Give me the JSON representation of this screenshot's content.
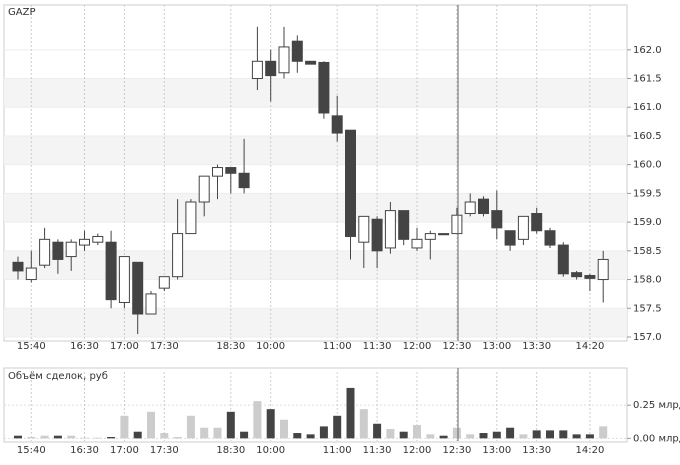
{
  "chart_data": [
    {
      "type": "candlestick",
      "title": "GAZP",
      "categories": [
        null,
        "15:40",
        null,
        null,
        null,
        "16:30",
        null,
        null,
        "17:00",
        null,
        null,
        "17:30",
        null,
        null,
        null,
        null,
        "18:30",
        null,
        null,
        "10:00",
        null,
        null,
        null,
        null,
        "11:00",
        null,
        null,
        "11:30",
        null,
        null,
        "12:00",
        null,
        null,
        "12:30",
        null,
        null,
        "13:00",
        null,
        null,
        "13:30",
        null,
        null,
        null,
        "14:20",
        null
      ],
      "open": [
        158.3,
        158.0,
        158.25,
        158.65,
        158.4,
        158.6,
        158.65,
        158.65,
        157.6,
        158.3,
        157.4,
        157.85,
        158.05,
        158.8,
        159.35,
        159.8,
        159.95,
        159.85,
        161.5,
        161.8,
        161.6,
        162.15,
        161.8,
        161.78,
        160.85,
        160.6,
        158.65,
        159.05,
        158.55,
        159.2,
        158.55,
        158.7,
        158.8,
        158.8,
        159.15,
        159.4,
        159.2,
        158.85,
        158.7,
        159.15,
        158.85,
        158.6,
        158.12,
        158.07,
        158.0
      ],
      "high": [
        158.4,
        158.5,
        158.9,
        158.7,
        158.7,
        158.85,
        158.8,
        158.85,
        158.4,
        158.3,
        157.8,
        158.05,
        159.4,
        159.4,
        159.8,
        160.0,
        159.95,
        160.45,
        162.4,
        162.0,
        162.4,
        162.25,
        161.8,
        161.8,
        161.2,
        160.6,
        159.1,
        159.1,
        159.35,
        159.2,
        158.9,
        158.85,
        158.8,
        159.25,
        159.5,
        159.45,
        159.55,
        158.85,
        159.1,
        159.25,
        158.9,
        158.65,
        158.15,
        158.1,
        158.5
      ],
      "low": [
        158.0,
        157.95,
        158.2,
        158.1,
        158.15,
        158.5,
        158.6,
        157.5,
        157.5,
        157.05,
        157.4,
        157.8,
        158.0,
        158.8,
        159.1,
        159.4,
        159.5,
        159.5,
        161.3,
        161.1,
        161.5,
        161.6,
        161.75,
        160.8,
        160.4,
        158.35,
        158.2,
        158.2,
        158.45,
        158.6,
        158.5,
        158.35,
        158.8,
        158.8,
        159.1,
        159.1,
        158.7,
        158.5,
        158.6,
        158.8,
        158.55,
        158.05,
        158.0,
        157.8,
        157.6
      ],
      "close": [
        158.15,
        158.2,
        158.7,
        158.35,
        158.65,
        158.7,
        158.75,
        157.65,
        158.4,
        157.4,
        157.75,
        158.05,
        158.8,
        159.35,
        159.8,
        159.95,
        159.85,
        159.6,
        161.8,
        161.55,
        162.05,
        161.8,
        161.75,
        160.9,
        160.55,
        158.75,
        159.1,
        158.5,
        159.2,
        158.7,
        158.7,
        158.8,
        158.78,
        159.12,
        159.35,
        159.15,
        158.9,
        158.6,
        159.1,
        158.85,
        158.6,
        158.1,
        158.05,
        158.02,
        158.35
      ],
      "ylim": [
        156.93,
        162.78
      ],
      "yticks": [
        {
          "value": 157.0,
          "label": "157.0"
        },
        157.5,
        {
          "value": 158.0,
          "label": "158.0"
        },
        158.5,
        {
          "value": 159.0,
          "label": "159.0"
        },
        159.5,
        {
          "value": 160.0,
          "label": "160.0"
        },
        160.5,
        {
          "value": 161.0,
          "label": "161.0"
        },
        161.5,
        {
          "value": 162.0,
          "label": "162.0"
        }
      ],
      "up_color": "#ffffff",
      "down_color": "#444444",
      "grid": true
    },
    {
      "type": "bar",
      "title": "Объём сделок, руб",
      "categories": [
        null,
        "15:40",
        null,
        null,
        null,
        "16:30",
        null,
        null,
        "17:00",
        null,
        null,
        "17:30",
        null,
        null,
        null,
        null,
        "18:30",
        null,
        null,
        "10:00",
        null,
        null,
        null,
        null,
        "11:00",
        null,
        null,
        "11:30",
        null,
        null,
        "12:00",
        null,
        null,
        "12:30",
        null,
        null,
        "13:00",
        null,
        null,
        "13:30",
        null,
        null,
        null,
        "14:20",
        null
      ],
      "values": [
        0.02,
        0.01,
        0.02,
        0.02,
        0.02,
        0.005,
        0.005,
        0.01,
        0.17,
        0.05,
        0.2,
        0.04,
        0.01,
        0.17,
        0.08,
        0.08,
        0.2,
        0.05,
        0.28,
        0.22,
        0.14,
        0.04,
        0.03,
        0.09,
        0.17,
        0.38,
        0.22,
        0.11,
        0.07,
        0.05,
        0.1,
        0.03,
        0.02,
        0.08,
        0.03,
        0.04,
        0.05,
        0.08,
        0.03,
        0.06,
        0.06,
        0.06,
        0.03,
        0.03,
        0.09
      ],
      "ylim": [
        -0.02,
        0.5
      ],
      "yticks": [
        {
          "value": 0,
          "label": "0.00 млрд"
        },
        {
          "value": 0.25,
          "label": "0.25 млрд"
        }
      ],
      "up_color": "#cccccc",
      "down_color": "#444444"
    }
  ]
}
